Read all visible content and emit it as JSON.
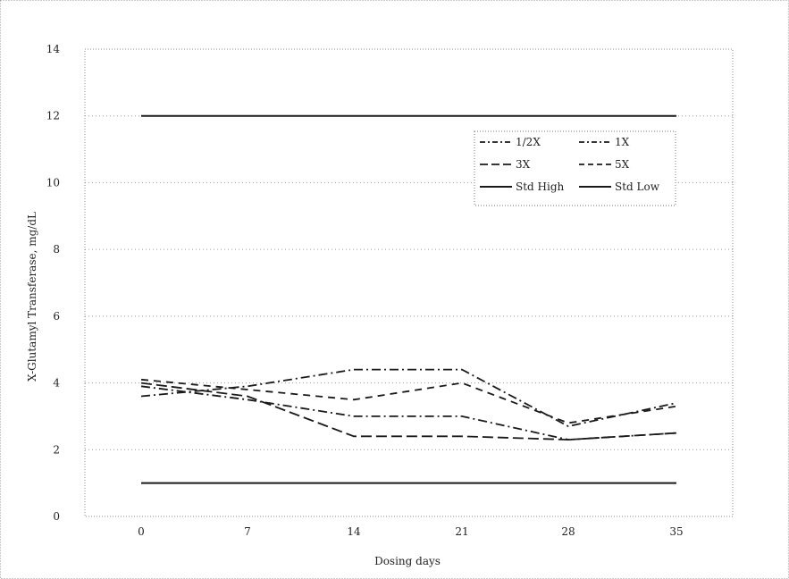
{
  "chart_data": {
    "type": "line",
    "title": "",
    "xlabel": "Dosing days",
    "ylabel": "X-Glutamyl Transferase, mg/dL",
    "x": [
      0,
      7,
      14,
      21,
      28,
      35
    ],
    "x_tick_labels": [
      "0",
      "7",
      "14",
      "21",
      "28",
      "35"
    ],
    "ylim": [
      0,
      14
    ],
    "y_ticks": [
      0,
      2,
      4,
      6,
      8,
      10,
      12,
      14
    ],
    "y_tick_labels": [
      "0",
      "2",
      "4",
      "6",
      "8",
      "10",
      "12",
      "14"
    ],
    "grid": "horizontal dotted",
    "legend_position": "top-right",
    "series": [
      {
        "name": "1/2X",
        "values": [
          3.6,
          3.9,
          4.4,
          4.4,
          2.7,
          3.4
        ],
        "style": "dash-dot"
      },
      {
        "name": "1X",
        "values": [
          3.9,
          3.5,
          3.0,
          3.0,
          2.3,
          2.5
        ],
        "style": "dash-dot"
      },
      {
        "name": "3X",
        "values": [
          4.0,
          3.6,
          2.4,
          2.4,
          2.3,
          2.5
        ],
        "style": "long-dash"
      },
      {
        "name": "5X",
        "values": [
          4.1,
          3.8,
          3.5,
          4.0,
          2.8,
          3.3
        ],
        "style": "dashed"
      },
      {
        "name": "Std High",
        "values": [
          12.0,
          12.0,
          12.0,
          12.0,
          12.0,
          12.0
        ],
        "style": "solid"
      },
      {
        "name": "Std Low",
        "values": [
          1.0,
          1.0,
          1.0,
          1.0,
          1.0,
          1.0
        ],
        "style": "solid"
      }
    ]
  },
  "colors": {
    "line": "#1a1a1a",
    "grid": "#9a9a9a",
    "frame": "#9a9a9a"
  }
}
